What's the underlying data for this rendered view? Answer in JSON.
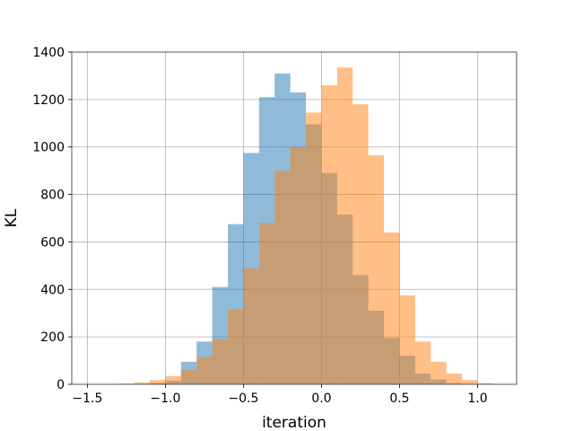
{
  "chart_data": {
    "type": "bar",
    "xlabel": "iteration",
    "ylabel": "KL",
    "xlim": [
      -1.6,
      1.25
    ],
    "ylim": [
      0,
      1400
    ],
    "x_ticks": [
      -1.5,
      -1.0,
      -0.5,
      0.0,
      0.5,
      1.0
    ],
    "x_tick_labels": [
      "−1.5",
      "−1.0",
      "−0.5",
      "0.0",
      "0.5",
      "1.0"
    ],
    "y_ticks": [
      0,
      200,
      400,
      600,
      800,
      1000,
      1200,
      1400
    ],
    "y_tick_labels": [
      "0",
      "200",
      "400",
      "600",
      "800",
      "1000",
      "1200",
      "1400"
    ],
    "grid": true,
    "series": [
      {
        "color": "#1f77b4",
        "opacity": 0.5,
        "bins": [
          {
            "x0": -1.1,
            "x1": -1.0,
            "value": 5
          },
          {
            "x0": -1.0,
            "x1": -0.9,
            "value": 15
          },
          {
            "x0": -0.9,
            "x1": -0.8,
            "value": 95
          },
          {
            "x0": -0.8,
            "x1": -0.7,
            "value": 180
          },
          {
            "x0": -0.7,
            "x1": -0.6,
            "value": 410
          },
          {
            "x0": -0.6,
            "x1": -0.5,
            "value": 675
          },
          {
            "x0": -0.5,
            "x1": -0.4,
            "value": 975
          },
          {
            "x0": -0.4,
            "x1": -0.3,
            "value": 1210
          },
          {
            "x0": -0.3,
            "x1": -0.2,
            "value": 1310
          },
          {
            "x0": -0.2,
            "x1": -0.1,
            "value": 1230
          },
          {
            "x0": -0.1,
            "x1": 0.0,
            "value": 1095
          },
          {
            "x0": 0.0,
            "x1": 0.1,
            "value": 890
          },
          {
            "x0": 0.1,
            "x1": 0.2,
            "value": 715
          },
          {
            "x0": 0.2,
            "x1": 0.3,
            "value": 460
          },
          {
            "x0": 0.3,
            "x1": 0.4,
            "value": 310
          },
          {
            "x0": 0.4,
            "x1": 0.5,
            "value": 195
          },
          {
            "x0": 0.5,
            "x1": 0.6,
            "value": 120
          },
          {
            "x0": 0.6,
            "x1": 0.7,
            "value": 45
          },
          {
            "x0": 0.7,
            "x1": 0.8,
            "value": 20
          },
          {
            "x0": 0.8,
            "x1": 0.9,
            "value": 5
          }
        ]
      },
      {
        "color": "#ff7f0e",
        "opacity": 0.5,
        "bins": [
          {
            "x0": -1.3,
            "x1": -1.2,
            "value": 3
          },
          {
            "x0": -1.2,
            "x1": -1.1,
            "value": 8
          },
          {
            "x0": -1.1,
            "x1": -1.0,
            "value": 18
          },
          {
            "x0": -1.0,
            "x1": -0.9,
            "value": 35
          },
          {
            "x0": -0.9,
            "x1": -0.8,
            "value": 60
          },
          {
            "x0": -0.8,
            "x1": -0.7,
            "value": 115
          },
          {
            "x0": -0.7,
            "x1": -0.6,
            "value": 190
          },
          {
            "x0": -0.6,
            "x1": -0.5,
            "value": 315
          },
          {
            "x0": -0.5,
            "x1": -0.4,
            "value": 490
          },
          {
            "x0": -0.4,
            "x1": -0.3,
            "value": 680
          },
          {
            "x0": -0.3,
            "x1": -0.2,
            "value": 900
          },
          {
            "x0": -0.2,
            "x1": -0.1,
            "value": 1000
          },
          {
            "x0": -0.1,
            "x1": 0.0,
            "value": 1145
          },
          {
            "x0": 0.0,
            "x1": 0.1,
            "value": 1260
          },
          {
            "x0": 0.1,
            "x1": 0.2,
            "value": 1335
          },
          {
            "x0": 0.2,
            "x1": 0.3,
            "value": 1180
          },
          {
            "x0": 0.3,
            "x1": 0.4,
            "value": 965
          },
          {
            "x0": 0.4,
            "x1": 0.5,
            "value": 640
          },
          {
            "x0": 0.5,
            "x1": 0.6,
            "value": 375
          },
          {
            "x0": 0.6,
            "x1": 0.7,
            "value": 180
          },
          {
            "x0": 0.7,
            "x1": 0.8,
            "value": 95
          },
          {
            "x0": 0.8,
            "x1": 0.9,
            "value": 45
          },
          {
            "x0": 0.9,
            "x1": 1.0,
            "value": 18
          },
          {
            "x0": 1.0,
            "x1": 1.1,
            "value": 5
          }
        ]
      }
    ]
  }
}
